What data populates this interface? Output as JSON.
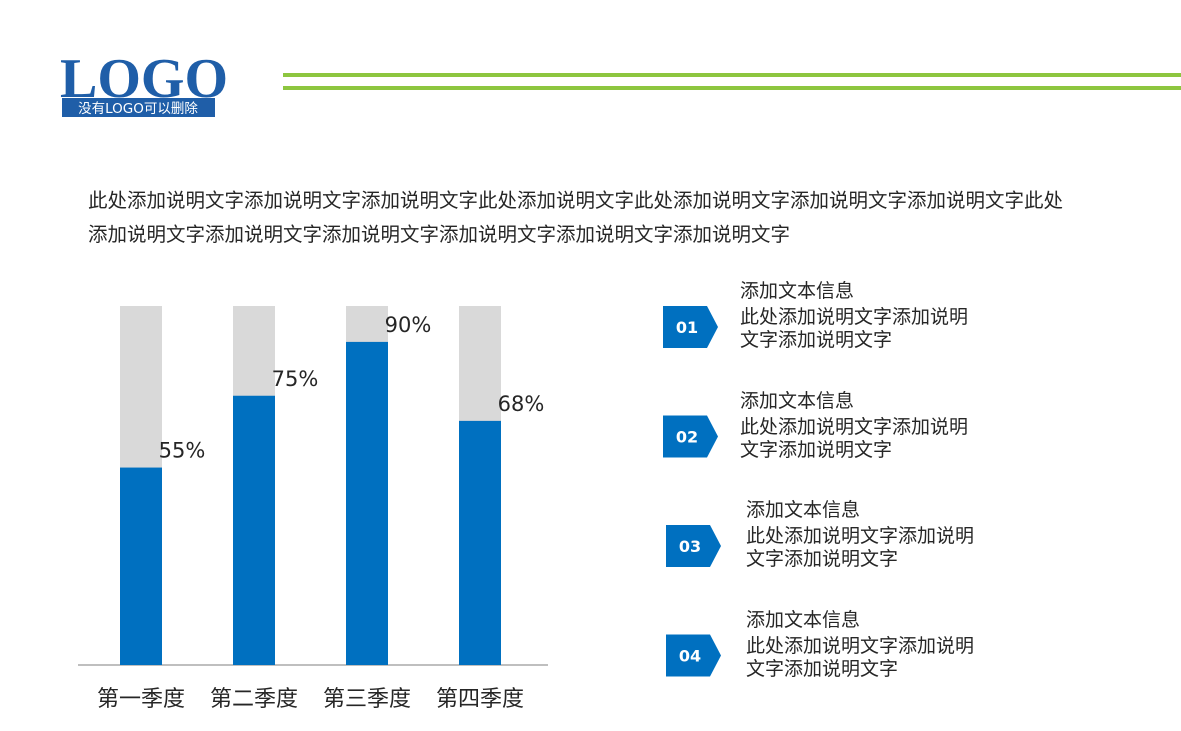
{
  "logo": {
    "text": "LOGO",
    "subtitle": "没有LOGO可以删除"
  },
  "description": "此处添加说明文字添加说明文字添加说明文字此处添加说明文字此处添加说明文字添加说明文字添加说明文字此处添加说明文字添加说明文字添加说明文字添加说明文字添加说明文字添加说明文字",
  "chart_data": {
    "type": "bar",
    "categories": [
      "第一季度",
      "第二季度",
      "第三季度",
      "第四季度"
    ],
    "values": [
      55,
      75,
      90,
      68
    ],
    "value_labels": [
      "55%",
      "75%",
      "90%",
      "68%"
    ],
    "color": "#0070c0",
    "ylim": [
      0,
      100
    ]
  },
  "items": [
    {
      "number": "01",
      "title": "添加文本信息",
      "text": "此处添加说明文字添加说明文字添加说明文字"
    },
    {
      "number": "02",
      "title": "添加文本信息",
      "text": "此处添加说明文字添加说明文字添加说明文字"
    },
    {
      "number": "03",
      "title": "添加文本信息",
      "text": "此处添加说明文字添加说明文字添加说明文字"
    },
    {
      "number": "04",
      "title": "添加文本信息",
      "text": "此处添加说明文字添加说明文字添加说明文字"
    }
  ]
}
